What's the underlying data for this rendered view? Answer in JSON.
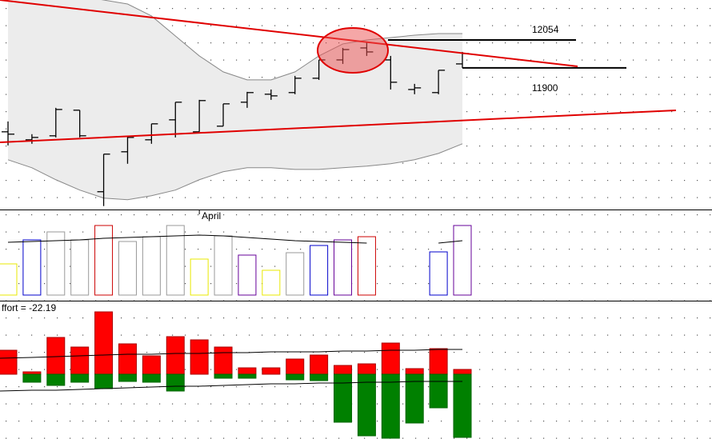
{
  "chart_data": {
    "type": "ohlc",
    "categories": [
      null,
      null,
      null,
      null,
      null,
      null,
      null,
      null,
      "April",
      null,
      null,
      null,
      null,
      null,
      null,
      null,
      null,
      null,
      null,
      null
    ],
    "open": [
      11548,
      11504,
      11526,
      11667,
      11218,
      11438,
      11504,
      11614,
      11548,
      11579,
      11711,
      11755,
      11764,
      11843,
      11944,
      12010,
      11944,
      11781,
      11764,
      11922
    ],
    "high": [
      11605,
      11535,
      11680,
      11667,
      11425,
      11526,
      11592,
      11711,
      11724,
      11702,
      11768,
      11781,
      11856,
      11944,
      12010,
      12045,
      11966,
      11812,
      11887,
      11988
    ],
    "low": [
      11473,
      11482,
      11517,
      11517,
      11139,
      11372,
      11482,
      11517,
      11548,
      11579,
      11680,
      11724,
      11755,
      11834,
      11922,
      11966,
      11781,
      11755,
      11755,
      11900
    ],
    "close": [
      11535,
      11517,
      11671,
      11526,
      11425,
      11517,
      11592,
      11711,
      11720,
      11702,
      11764,
      11746,
      11843,
      11944,
      12001,
      11988,
      11821,
      11790,
      11887,
      11979
    ],
    "color": "#000000",
    "band_upper": [
      12362,
      12340,
      12318,
      12296,
      12274,
      12252,
      12186,
      12076,
      11966,
      11878,
      11834,
      11834,
      11878,
      11966,
      12032,
      12054,
      12067,
      12080,
      12089,
      12089
    ],
    "band_lower": [
      11394,
      11350,
      11284,
      11227,
      11183,
      11174,
      11196,
      11227,
      11284,
      11328,
      11350,
      11350,
      11341,
      11341,
      11350,
      11359,
      11372,
      11394,
      11429,
      11482
    ],
    "band_color": "#ececec",
    "ylim": [
      11120,
      12274
    ],
    "levels": [
      12054,
      11900
    ],
    "volume": {
      "values": [
        39,
        69,
        79,
        69,
        87,
        67,
        73,
        87,
        45,
        74,
        50,
        31,
        53,
        62,
        69,
        73,
        null,
        null,
        54,
        87
      ],
      "colors": [
        "#e8e800",
        "#0000cc",
        "#999999",
        "#999999",
        "#cc0000",
        "#999999",
        "#999999",
        "#999999",
        "#e8e800",
        "#999999",
        "#660099",
        "#e8e800",
        "#999999",
        "#0000cc",
        "#660099",
        "#cc0000",
        "#999999",
        "#999999",
        "#0000cc",
        "#660099"
      ],
      "ma": [
        66,
        67,
        68,
        69,
        71,
        72,
        73,
        74,
        75,
        74,
        72,
        70,
        68,
        67,
        66,
        65,
        null,
        null,
        65,
        68
      ],
      "ylim": [
        0,
        106
      ]
    },
    "effort": {
      "label": "ffort = -22.19",
      "up": [
        30,
        3,
        46,
        34,
        78,
        38,
        23,
        47,
        43,
        34,
        8,
        8,
        19,
        24,
        11,
        13,
        39,
        7,
        32,
        6
      ],
      "down": [
        0,
        -10,
        -14,
        -10,
        -18,
        -9,
        -10,
        -21,
        0,
        -5,
        -5,
        0,
        -7,
        -8,
        -60,
        -77,
        -80,
        -61,
        -42,
        -79
      ],
      "up_color": "#ff0000",
      "down_color": "#008000",
      "band_upper": [
        20,
        21,
        22,
        23,
        24,
        25,
        25,
        26,
        26,
        27,
        27,
        28,
        28,
        28,
        29,
        29,
        30,
        30,
        31,
        31
      ],
      "band_lower": [
        -21,
        -20,
        -20,
        -19,
        -18,
        -17,
        -16,
        -15,
        -15,
        -14,
        -13,
        -12,
        -12,
        -11,
        -11,
        -10,
        -10,
        -9,
        -9,
        -9
      ],
      "ylim": [
        -81,
        91
      ]
    }
  }
}
